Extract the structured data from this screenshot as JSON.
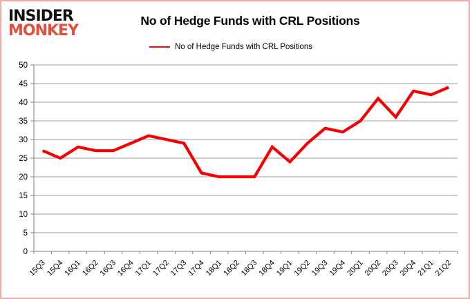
{
  "logo": {
    "line1": "INSIDER",
    "line2": "MONKEY"
  },
  "header": {
    "title": "No of Hedge Funds with CRL Positions"
  },
  "legend": {
    "label": "No of Hedge Funds with CRL Positions"
  },
  "colors": {
    "line": "#f40000",
    "legend_line": "#e8100c",
    "logo_red": "#e0503c",
    "grid": "#9b9b9b",
    "axis": "#7f7f7f",
    "tick_text": "#000000",
    "border": "#f0aca4"
  },
  "chart_data": {
    "type": "line",
    "title": "No of Hedge Funds with CRL Positions",
    "xlabel": "",
    "ylabel": "",
    "categories": [
      "15Q3",
      "15Q4",
      "16Q1",
      "16Q2",
      "16Q3",
      "16Q4",
      "17Q1",
      "17Q2",
      "17Q3",
      "17Q4",
      "18Q1",
      "18Q2",
      "18Q3",
      "18Q4",
      "19Q1",
      "19Q2",
      "19Q3",
      "19Q4",
      "20Q1",
      "20Q2",
      "20Q3",
      "20Q4",
      "21Q1",
      "21Q2"
    ],
    "series": [
      {
        "name": "No of Hedge Funds with CRL Positions",
        "color": "#f40000",
        "values": [
          27,
          25,
          28,
          27,
          27,
          29,
          31,
          30,
          29,
          21,
          20,
          20,
          20,
          28,
          24,
          29,
          33,
          32,
          35,
          41,
          36,
          43,
          42,
          44
        ]
      }
    ],
    "ylim": [
      0,
      50
    ],
    "ytick_step": 5,
    "grid": true,
    "legend_position": "top"
  }
}
